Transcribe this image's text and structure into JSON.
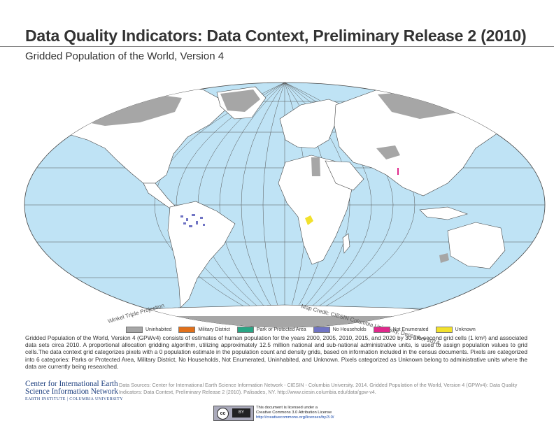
{
  "title": "Data Quality Indicators: Data Context, Preliminary Release 2 (2010)",
  "subtitle": "Gridded Population of the World, Version 4",
  "map": {
    "projection_label": "Winkel Triple Projection",
    "credit": "Map Credit: CIESIN Columbia University, December 2014.",
    "colors": {
      "ocean": "#bfe3f5",
      "land": "#ffffff",
      "border": "#444444",
      "graticule": "#555555"
    }
  },
  "legend": [
    {
      "label": "Uninhabited",
      "color": "#a6a6a6"
    },
    {
      "label": "Military District",
      "color": "#e1701a"
    },
    {
      "label": "Park or Protected Area",
      "color": "#2aa685"
    },
    {
      "label": "No Households",
      "color": "#7074c4"
    },
    {
      "label": "Not Enumerated",
      "color": "#e0288c"
    },
    {
      "label": "Unknown",
      "color": "#f2e12c"
    }
  ],
  "description": "Gridded Population of the World, Version 4 (GPWv4) consists of estimates of human population for the years 2000, 2005, 2010, 2015, and 2020 by 30 arc-second grid cells (1 km²) and associated data sets circa 2010. A proportional allocation gridding algorithm, utilizing approximately 12.5 million national and sub-national administrative units, is used to assign population values to grid cells.The data context grid categorizes pixels with a 0 population estimate in the population count and density grids, based on information included in the census documents. Pixels are categorized into 6 categories: Parks or Protected Area, Military District, No Households, Not Enumerated, Uninhabited, and Unknown. Pixels categorized as Unknown belong to administrative units where the data are currently being researched.",
  "logo": {
    "line1": "Center for International Earth",
    "line2": "Science Information Network",
    "line3": "EARTH INSTITUTE | COLUMBIA UNIVERSITY"
  },
  "sources": "Data Sources: Center for International Earth Science Information Network - CIESIN - Columbia University. 2014. Gridded Population of the World, Version 4 (GPWv4): Data Quality Indicators: Data Context, Preliminary Release 2 (2010). Palisades, NY. http://www.ciesin.columbia.edu/data/gpw-v4.",
  "license": {
    "badge_text": "cc",
    "badge_by": "BY",
    "line1": "This document is licensed under a",
    "line2": "Creative Commons 3.0 Attribution License",
    "url": "http://creativecommons.org/licenses/by/3.0/"
  }
}
